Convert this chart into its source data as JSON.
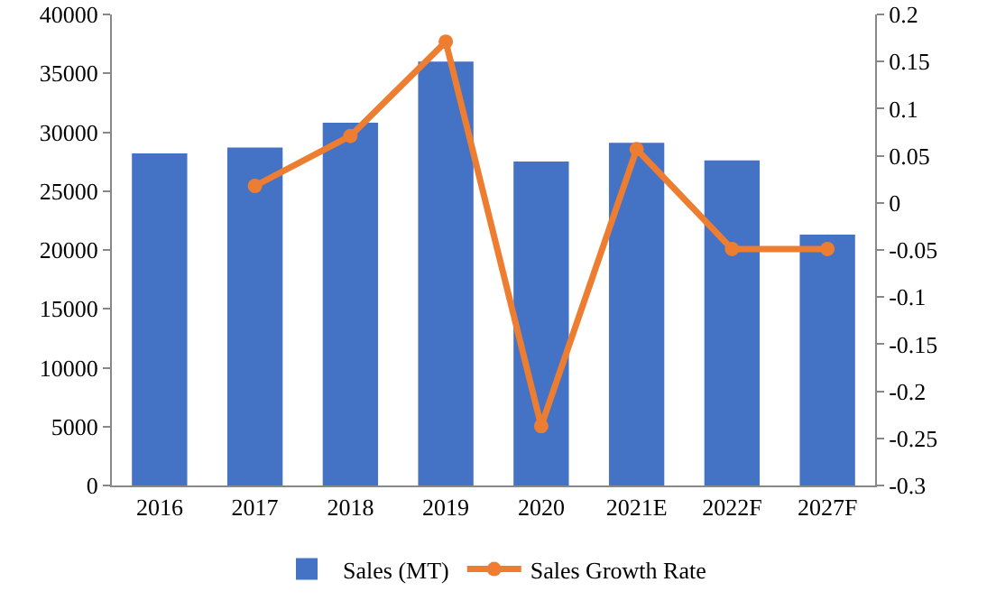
{
  "chart_data": {
    "type": "bar",
    "categories": [
      "2016",
      "2017",
      "2018",
      "2019",
      "2020",
      "2021E",
      "2022F",
      "2027F"
    ],
    "series": [
      {
        "name": "Sales (MT)",
        "color": "#4472c4",
        "values": [
          28200,
          28700,
          30800,
          36000,
          27500,
          29100,
          27600,
          21300
        ]
      },
      {
        "name": "Sales Growth Rate",
        "type": "line",
        "axis": "y2",
        "color": "#ed7d31",
        "marker": "circle",
        "values": [
          null,
          0.018,
          0.071,
          0.171,
          -0.237,
          0.057,
          -0.049,
          -0.049
        ]
      }
    ],
    "ylim": [
      0,
      40000
    ],
    "yticks": [
      0,
      5000,
      10000,
      15000,
      20000,
      25000,
      30000,
      35000,
      40000
    ],
    "y2lim": [
      -0.3,
      0.2
    ],
    "y2ticks": [
      -0.3,
      -0.25,
      -0.2,
      -0.15,
      -0.1,
      -0.05,
      0,
      0.05,
      0.1,
      0.15,
      0.2
    ],
    "grid": false,
    "legend": "bottom"
  }
}
